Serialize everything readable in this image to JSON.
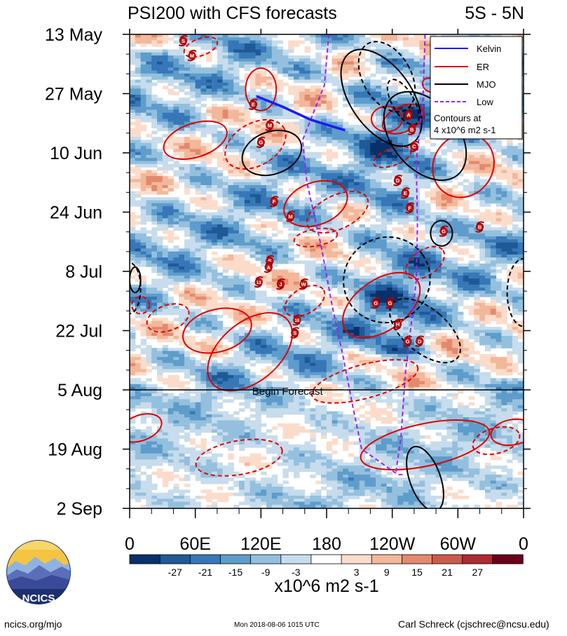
{
  "chart_data": {
    "type": "heatmap",
    "title_left": "PSI200 with CFS forecasts",
    "title_right": "5S - 5N",
    "x_ticks": [
      "0",
      "60E",
      "120E",
      "180",
      "120W",
      "60W",
      "0"
    ],
    "y_ticks": [
      "13 May",
      "27 May",
      "10 Jun",
      "24 Jun",
      "8 Jul",
      "22 Jul",
      "5 Aug",
      "19 Aug",
      "2 Sep"
    ],
    "xlim_degE": [
      0,
      360
    ],
    "y_days_from_13May": [
      0,
      112
    ],
    "forecast_start_day": 84,
    "forecast_label": "Begin Forecast",
    "legend": {
      "entries": [
        {
          "name": "Kelvin",
          "color": "#1a1aff",
          "style": "solid"
        },
        {
          "name": "ER",
          "color": "#e00000",
          "style": "solid"
        },
        {
          "name": "MJO",
          "color": "#000000",
          "style": "solid"
        },
        {
          "name": "Low",
          "color": "#a020f0",
          "style": "dashed"
        }
      ],
      "note_line1": "Contours at",
      "note_line2": "4 x10^6 m2 s-1"
    },
    "colorbar": {
      "labels": [
        "-27",
        "-21",
        "-15",
        "-9",
        "-3",
        "3",
        "9",
        "15",
        "21",
        "27"
      ],
      "colors": [
        "#08306b",
        "#1f5a96",
        "#3777b8",
        "#5e9ccb",
        "#94c0de",
        "#c7dcec",
        "#ffffff",
        "#fbdccb",
        "#f3b79a",
        "#e38a6e",
        "#cc5b4c",
        "#ad2b33",
        "#6b0018"
      ],
      "units": "x10^6 m2 s-1"
    },
    "storms": [
      {
        "letter": "S",
        "lon": 49,
        "day": 1.5
      },
      {
        "letter": "M",
        "lon": 57,
        "day": 5
      },
      {
        "letter": "E",
        "lon": 113,
        "day": 16.5
      },
      {
        "letter": "M",
        "lon": 128,
        "day": 21.5
      },
      {
        "letter": "G",
        "lon": 120,
        "day": 25.5
      },
      {
        "letter": "A",
        "lon": 255,
        "day": 19
      },
      {
        "letter": "B",
        "lon": 258,
        "day": 22.5
      },
      {
        "letter": "C",
        "lon": 260,
        "day": 26.5
      },
      {
        "letter": "D",
        "lon": 245,
        "day": 34.5
      },
      {
        "letter": "E",
        "lon": 252,
        "day": 37.5
      },
      {
        "letter": "F",
        "lon": 256,
        "day": 41
      },
      {
        "letter": "F",
        "lon": 132,
        "day": 39.5
      },
      {
        "letter": "M",
        "lon": 147,
        "day": 43
      },
      {
        "letter": "G",
        "lon": 287,
        "day": 46.5
      },
      {
        "letter": "B",
        "lon": 320,
        "day": 45.5
      },
      {
        "letter": "S",
        "lon": 128,
        "day": 53.5
      },
      {
        "letter": "A",
        "lon": 127,
        "day": 55
      },
      {
        "letter": "13",
        "lon": 118,
        "day": 58.5
      },
      {
        "letter": "J",
        "lon": 138,
        "day": 59
      },
      {
        "letter": "W",
        "lon": 159,
        "day": 59
      },
      {
        "letter": "G",
        "lon": 225,
        "day": 63.5
      },
      {
        "letter": "G",
        "lon": 238,
        "day": 63.5
      },
      {
        "letter": "18",
        "lon": 153,
        "day": 67.5
      },
      {
        "letter": "S",
        "lon": 151,
        "day": 70.5
      },
      {
        "letter": "H",
        "lon": 245,
        "day": 68.5
      },
      {
        "letter": "G",
        "lon": 254,
        "day": 72.5
      },
      {
        "letter": "D",
        "lon": 265,
        "day": 72.5
      }
    ]
  },
  "footer": {
    "left": "ncics.org/mjo",
    "middle": "Mon 2018-08-06 1015 UTC",
    "right": "Carl Schreck (cjschrec@ncsu.edu)"
  },
  "logo": {
    "text": "NCICS"
  }
}
